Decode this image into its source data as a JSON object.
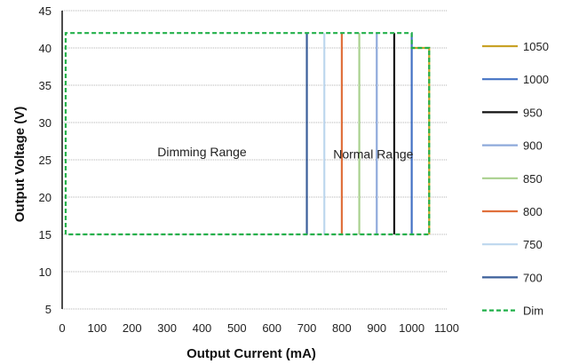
{
  "chart_data": {
    "type": "line",
    "title": "",
    "xlabel": "Output Current  (mA)",
    "ylabel": "Output Voltage  (V)",
    "xlim": [
      0,
      1100
    ],
    "ylim": [
      5,
      45
    ],
    "x_ticks": [
      "0",
      "100",
      "200",
      "300",
      "400",
      "500",
      "600",
      "700",
      "800",
      "900",
      "1000",
      "1100"
    ],
    "y_ticks": [
      "5",
      "10",
      "15",
      "20",
      "25",
      "30",
      "35",
      "40",
      "45"
    ],
    "grid": "horizontal",
    "legend_position": "right",
    "annotations": [
      {
        "text": "Dimming Range",
        "x": 400,
        "y": 25.5
      },
      {
        "text": "Normal Range",
        "x": 890,
        "y": 25.2
      }
    ],
    "series": [
      {
        "name": "1050",
        "color": "#c9a227",
        "style": "solid",
        "points": [
          [
            1000,
            40
          ],
          [
            1050,
            40
          ],
          [
            1050,
            15
          ]
        ]
      },
      {
        "name": "1000",
        "color": "#4472c4",
        "style": "solid",
        "points": [
          [
            1000,
            42
          ],
          [
            1000,
            15
          ]
        ]
      },
      {
        "name": "950",
        "color": "#111111",
        "style": "solid",
        "points": [
          [
            950,
            42
          ],
          [
            950,
            15
          ]
        ]
      },
      {
        "name": "900",
        "color": "#8eaadb",
        "style": "solid",
        "points": [
          [
            900,
            42
          ],
          [
            900,
            15
          ]
        ]
      },
      {
        "name": "850",
        "color": "#a9d18e",
        "style": "solid",
        "points": [
          [
            850,
            42
          ],
          [
            850,
            15
          ]
        ]
      },
      {
        "name": "800",
        "color": "#e0703c",
        "style": "solid",
        "points": [
          [
            800,
            42
          ],
          [
            800,
            15
          ]
        ]
      },
      {
        "name": "750",
        "color": "#bdd7ee",
        "style": "solid",
        "points": [
          [
            750,
            42
          ],
          [
            750,
            15
          ]
        ]
      },
      {
        "name": "700",
        "color": "#3b5f9a",
        "style": "solid",
        "points": [
          [
            700,
            42
          ],
          [
            700,
            15
          ]
        ]
      },
      {
        "name": "Dim",
        "color": "#22b04a",
        "style": "dashed",
        "points": [
          [
            10,
            15
          ],
          [
            10,
            42
          ],
          [
            1000,
            42
          ],
          [
            1000,
            40
          ],
          [
            1050,
            40
          ],
          [
            1050,
            15
          ],
          [
            10,
            15
          ]
        ]
      }
    ]
  }
}
